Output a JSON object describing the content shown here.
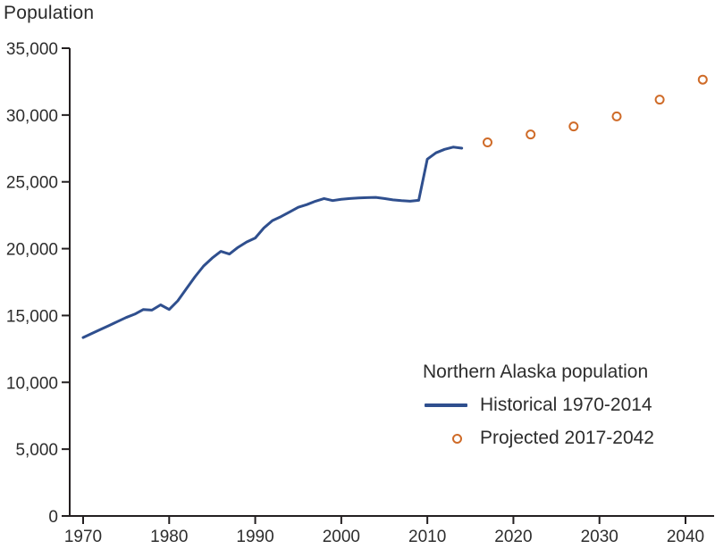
{
  "colors": {
    "historical": "#2f4f8e",
    "projected": "#cf6b28",
    "axis": "#231f20",
    "text": "#2d2d2d"
  },
  "chart_data": {
    "type": "line",
    "title": "Population",
    "xlabel": "",
    "ylabel": "Population",
    "xlim": [
      1968.5,
      2043.5
    ],
    "ylim": [
      0,
      35000
    ],
    "x_ticks": [
      1970,
      1980,
      1990,
      2000,
      2010,
      2020,
      2030,
      2040
    ],
    "y_ticks": [
      0,
      5000,
      10000,
      15000,
      20000,
      25000,
      30000,
      35000
    ],
    "grid": false,
    "legend": {
      "position": "bottom-right",
      "title": "Northern Alaska population",
      "entries": [
        {
          "label": "Historical 1970-2014",
          "marker": "line",
          "color": "#2f4f8e"
        },
        {
          "label": "Projected 2017-2042",
          "marker": "open-circle",
          "color": "#cf6b28"
        }
      ]
    },
    "series": [
      {
        "name": "Historical 1970-2014",
        "type": "line",
        "color": "#2f4f8e",
        "x": [
          1970,
          1971,
          1972,
          1973,
          1974,
          1975,
          1976,
          1977,
          1978,
          1979,
          1980,
          1981,
          1982,
          1983,
          1984,
          1985,
          1986,
          1987,
          1988,
          1989,
          1990,
          1991,
          1992,
          1993,
          1994,
          1995,
          1996,
          1997,
          1998,
          1999,
          2000,
          2001,
          2002,
          2003,
          2004,
          2005,
          2006,
          2007,
          2008,
          2009,
          2010,
          2011,
          2012,
          2013,
          2014
        ],
        "y": [
          13350,
          13650,
          13950,
          14250,
          14550,
          14850,
          15100,
          15450,
          15400,
          15800,
          15450,
          16100,
          17000,
          17900,
          18700,
          19300,
          19800,
          19600,
          20100,
          20500,
          20800,
          21550,
          22100,
          22400,
          22750,
          23100,
          23300,
          23550,
          23750,
          23600,
          23700,
          23750,
          23800,
          23820,
          23840,
          23750,
          23650,
          23590,
          23550,
          23620,
          26700,
          27170,
          27430,
          27600,
          27520
        ]
      },
      {
        "name": "Projected 2017-2042",
        "type": "scatter",
        "marker": "open-circle",
        "color": "#cf6b28",
        "x": [
          2017,
          2022,
          2027,
          2032,
          2037,
          2042
        ],
        "y": [
          27950,
          28550,
          29150,
          29900,
          31150,
          32650
        ]
      }
    ]
  }
}
